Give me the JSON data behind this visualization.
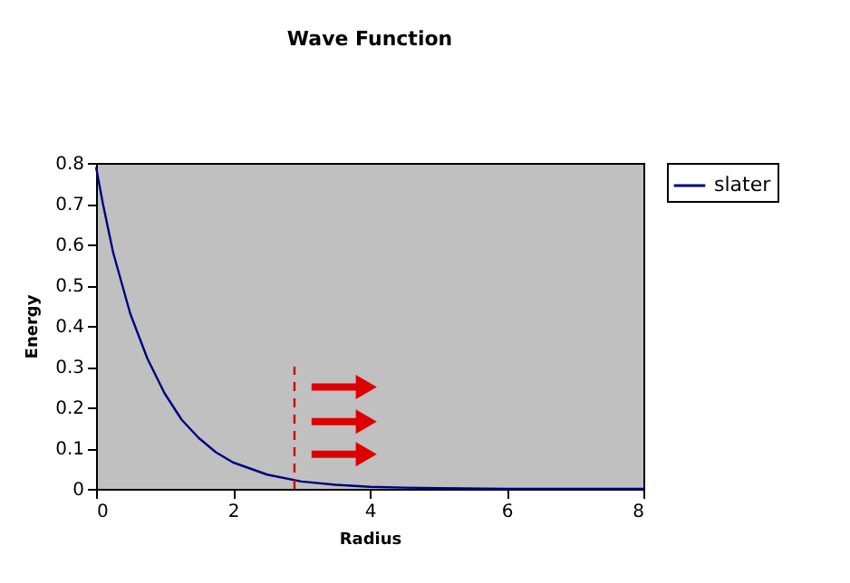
{
  "chart_data": {
    "type": "line",
    "title": "Wave Function",
    "xlabel": "Radius",
    "ylabel": "Energy",
    "xlim": [
      0,
      8
    ],
    "xticks": [
      0,
      2,
      4,
      6,
      8
    ],
    "ylim": [
      0,
      0.8
    ],
    "yticks": [
      0,
      0.1,
      0.2,
      0.3,
      0.4,
      0.5,
      0.6,
      0.7,
      0.8
    ],
    "grid": false,
    "legend": "right",
    "marker": "none",
    "series": [
      {
        "name": "slater",
        "color": "#000080",
        "line_style": "solid",
        "x": [
          0,
          0.1,
          0.25,
          0.5,
          0.75,
          1,
          1.25,
          1.5,
          1.75,
          2,
          2.5,
          3,
          3.5,
          4,
          4.5,
          5,
          6,
          7,
          8
        ],
        "values": [
          0.79,
          0.7,
          0.58,
          0.43,
          0.32,
          0.235,
          0.17,
          0.125,
          0.09,
          0.065,
          0.035,
          0.018,
          0.01,
          0.005,
          0.003,
          0.002,
          0,
          0,
          0
        ]
      },
      {
        "type": "line",
        "color": "#cc0000",
        "line_style": "dashed",
        "x": [
          2.9,
          2.9
        ],
        "values": [
          0,
          0.3
        ]
      }
    ]
  }
}
